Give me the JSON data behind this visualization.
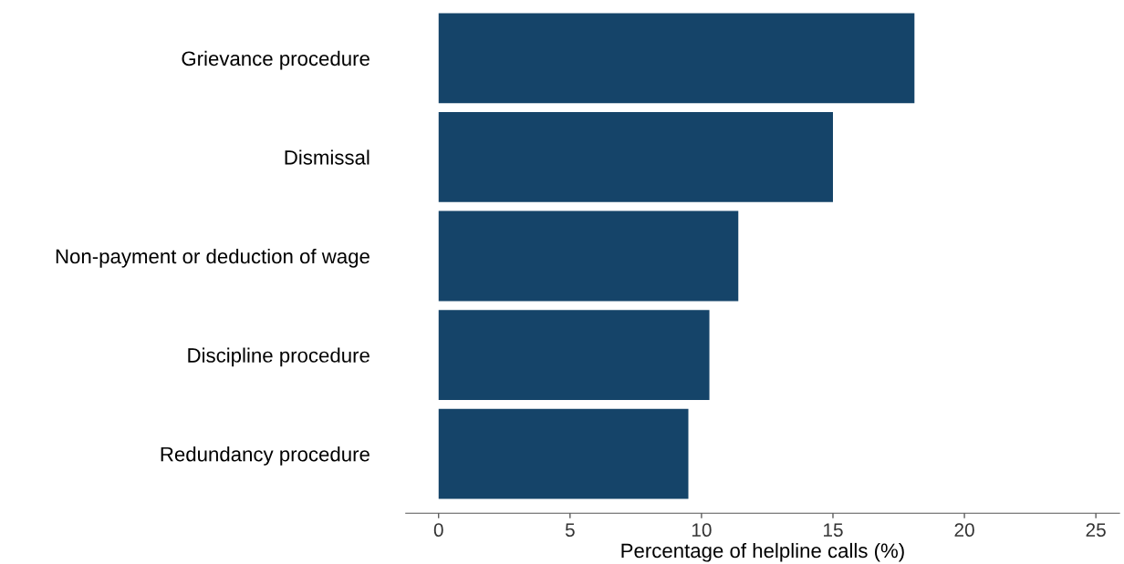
{
  "chart_data": {
    "type": "bar",
    "orientation": "horizontal",
    "categories": [
      "Grievance procedure",
      "Dismissal",
      "Non-payment or deduction of wage",
      "Discipline procedure",
      "Redundancy procedure"
    ],
    "values": [
      18.1,
      15.0,
      11.4,
      10.3,
      9.5
    ],
    "color": "#154469",
    "xlabel": "Percentage of helpline calls (%)",
    "xlim": [
      -1.25,
      25.9
    ],
    "xticks": [
      0,
      5,
      10,
      15,
      20,
      25
    ],
    "grid": false,
    "legend": false
  }
}
